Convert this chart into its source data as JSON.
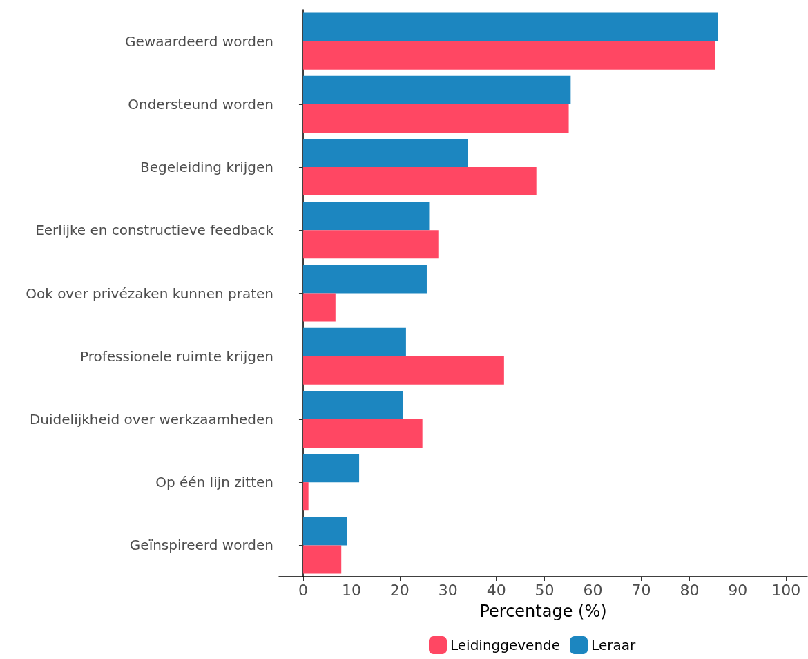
{
  "chart_data": {
    "type": "bar",
    "orientation": "horizontal",
    "xlabel": "Percentage (%)",
    "categories": [
      "Gewaardeerd worden",
      "Ondersteund worden",
      "Begeleiding krijgen",
      "Eerlijke en constructieve feedback",
      "Ook over privézaken kunnen praten",
      "Professionele ruimte krijgen",
      "Duidelijkheid over werkzaamheden",
      "Op één lijn zitten",
      "Geïnspireerd worden"
    ],
    "series": [
      {
        "name": "Leidinggevende",
        "color": "#ff4763",
        "values": [
          85.3,
          55.0,
          48.3,
          28.0,
          6.7,
          41.6,
          24.7,
          1.1,
          7.9
        ]
      },
      {
        "name": "Leraar",
        "color": "#1c86c0",
        "values": [
          85.9,
          55.4,
          34.1,
          26.1,
          25.6,
          21.3,
          20.7,
          11.6,
          9.1
        ]
      }
    ],
    "xlim": [
      -5,
      104.4
    ],
    "xticks": [
      0,
      10,
      20,
      30,
      40,
      50,
      60,
      70,
      80,
      90,
      100
    ],
    "grid": false,
    "legend": "bottom"
  }
}
